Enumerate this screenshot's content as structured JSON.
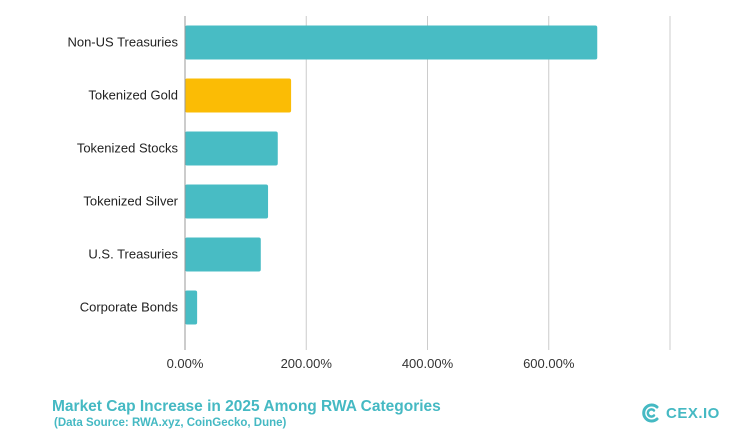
{
  "chart_data": {
    "type": "bar",
    "orientation": "horizontal",
    "title": "Market Cap Increase in 2025 Among RWA Categories",
    "subtitle": "(Data Source: RWA.xyz, CoinGecko, Dune)",
    "categories": [
      "Non-US Treasuries",
      "Tokenized Gold",
      "Tokenized Stocks",
      "Tokenized Silver",
      "U.S. Treasuries",
      "Corporate Bonds"
    ],
    "values": [
      680,
      175,
      153,
      137,
      125,
      20
    ],
    "highlight_category": "Tokenized Gold",
    "xlim": [
      0,
      800
    ],
    "xticks": [
      0,
      200,
      400,
      600
    ],
    "xtick_labels": [
      "0.00%",
      "200.00%",
      "400.00%",
      "600.00%"
    ],
    "grid": true,
    "xlabel": "",
    "ylabel": "",
    "colors": {
      "bar": "#48bcc4",
      "highlight": "#fbbc05",
      "grid": "#cccccc",
      "title": "#45b9c3"
    }
  },
  "branding": {
    "logo_text": "CEX.IO",
    "logo_icon": "cex-io-logo-icon"
  }
}
